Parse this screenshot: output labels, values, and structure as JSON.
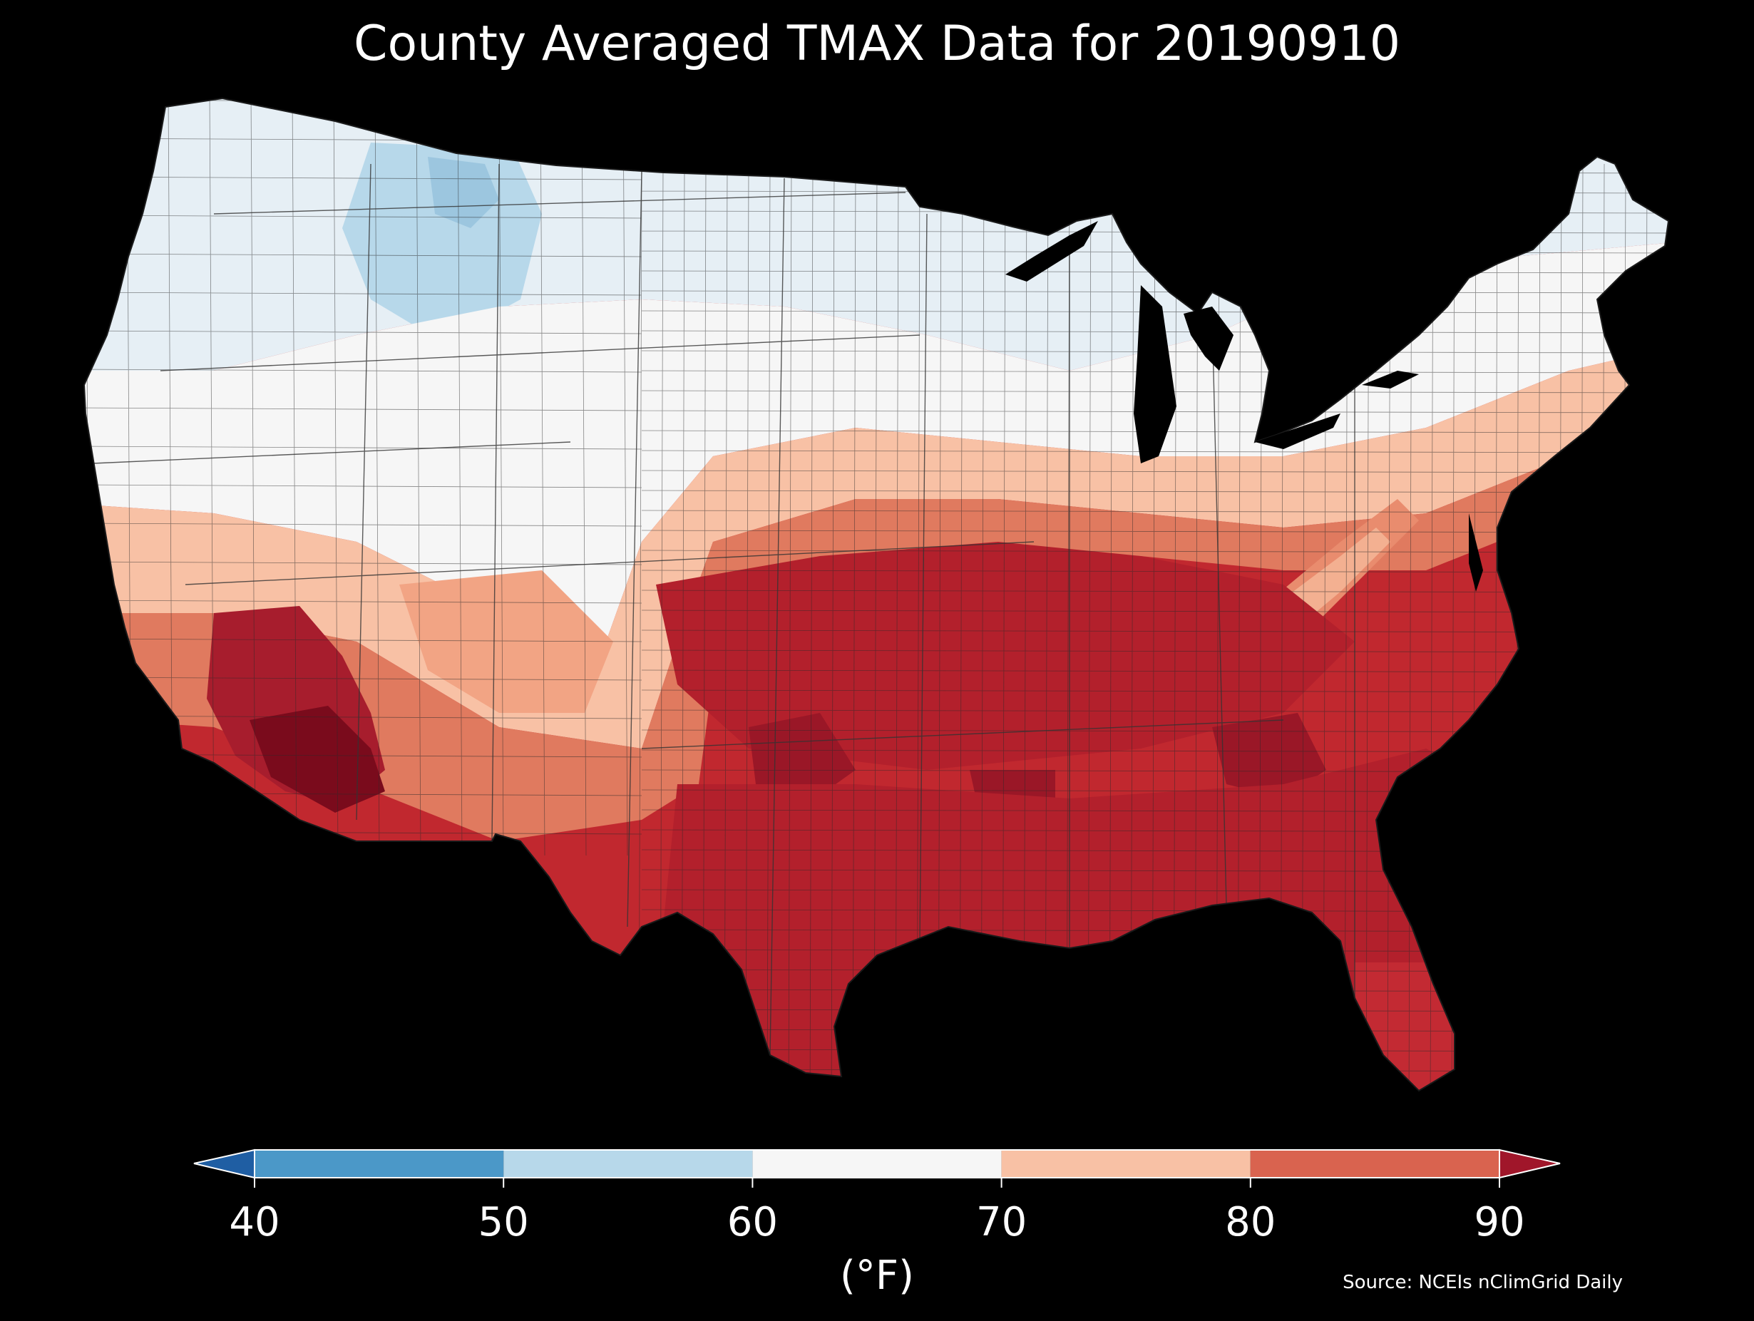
{
  "title": "County Averaged TMAX Data for 20190910",
  "source": "Source: NCEIs nClimGrid Daily",
  "colorbar": {
    "label": "(°F)",
    "ticks": [
      "40",
      "50",
      "60",
      "70",
      "80",
      "90"
    ],
    "bins": [
      {
        "min": 40,
        "max": 50,
        "color": "#4b98c8"
      },
      {
        "min": 50,
        "max": 60,
        "color": "#b7d8ea"
      },
      {
        "min": 60,
        "max": 70,
        "color": "#f6f6f6"
      },
      {
        "min": 70,
        "max": 80,
        "color": "#f8c1a5"
      },
      {
        "min": 80,
        "max": 90,
        "color": "#d9634f"
      }
    ],
    "under_color": "#1f5ea3",
    "over_color": "#a0162a",
    "extend": "both"
  },
  "colors": {
    "background": "#000000",
    "cold": "#b7d8ea",
    "cool": "#e6eff5",
    "neutral": "#f6f6f6",
    "warm": "#f8c1a5",
    "hot": "#e07a5f",
    "very_hot": "#c1282f",
    "extreme": "#7a0b1c",
    "boundary": "#2a2a2a"
  },
  "map": {
    "region": "Contiguous United States",
    "variable": "TMAX",
    "date": "20190910",
    "units": "°F"
  }
}
